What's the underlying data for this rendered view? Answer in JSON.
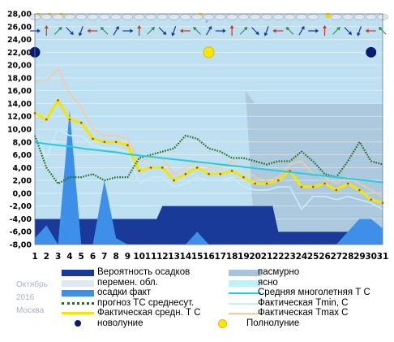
{
  "caption": {
    "month": "Октябрь",
    "year": "2016",
    "city": "Москва"
  },
  "legend": [
    {
      "key": "precip_prob",
      "label": "Вероятность осадков",
      "color": "#1a3a9a",
      "kind": "box"
    },
    {
      "key": "overcast",
      "label": "пасмурно",
      "color": "#a9c3d8",
      "kind": "box"
    },
    {
      "key": "variable",
      "label": "перемен. обл.",
      "color": "#dde8f3",
      "kind": "box"
    },
    {
      "key": "clear",
      "label": "ясно",
      "color": "#bff2f7",
      "kind": "box"
    },
    {
      "key": "precip_fact",
      "label": "осадки факт",
      "color": "#3d8fe8",
      "kind": "box"
    },
    {
      "key": "norm_t",
      "label": "Средняя многолетняя Т С",
      "color": "#1fcfe0",
      "kind": "line"
    },
    {
      "key": "forecast_t",
      "label": "прогноз ТС среднесут.",
      "color": "#1e6e1e",
      "kind": "dotted"
    },
    {
      "key": "fact_tmin",
      "label": "Фактическая Tmin, C",
      "color": "#c9ecf7",
      "kind": "line"
    },
    {
      "key": "fact_tavg",
      "label": "Фактическая средн. Т С",
      "color": "#f5e600",
      "kind": "thick"
    },
    {
      "key": "fact_tmax",
      "label": "Фактическая Tmax C",
      "color": "#f8c9a0",
      "kind": "line"
    },
    {
      "key": "new_moon",
      "label": "новолуние",
      "color": "#0a1a6e",
      "kind": "dot"
    },
    {
      "key": "full_moon",
      "label": "Полнолуние",
      "color": "#ffe800",
      "kind": "circle"
    }
  ],
  "chart_data": {
    "type": "line",
    "x": [
      1,
      2,
      3,
      4,
      5,
      6,
      7,
      8,
      9,
      10,
      11,
      12,
      13,
      14,
      15,
      16,
      17,
      18,
      19,
      20,
      21,
      22,
      23,
      24,
      25,
      26,
      27,
      28,
      29,
      30,
      31
    ],
    "xlabels": [
      "1",
      "2",
      "3",
      "4",
      "5",
      "6",
      "7",
      "8",
      "9",
      "10",
      "11",
      "12",
      "13",
      "14",
      "15",
      "16",
      "17",
      "18",
      "19",
      "20",
      "21",
      "22",
      "23",
      "24",
      "25",
      "26",
      "27",
      "28",
      "29",
      "30",
      "31"
    ],
    "ylim": [
      -8,
      28
    ],
    "yticks": [
      "-8,00",
      "-6,00",
      "-4,00",
      "-2,00",
      "0,00",
      "2,00",
      "4,00",
      "6,00",
      "8,00",
      "10,00",
      "12,00",
      "14,00",
      "16,00",
      "18,00",
      "20,00",
      "22,00",
      "24,00",
      "26,00",
      "28,00"
    ],
    "series": [
      {
        "name": "Фактическая Tmax C",
        "color": "#f8c9a0",
        "values": [
          17.5,
          17.5,
          19.5,
          15.5,
          13.5,
          10,
          9,
          9,
          8.5,
          5,
          5.5,
          5.5,
          3,
          4,
          5,
          4,
          4,
          5,
          4,
          2.5,
          2,
          2.5,
          4.5,
          5,
          3,
          2.5,
          1.5,
          2.5,
          1.5,
          0.5,
          -0.5
        ]
      },
      {
        "name": "Фактическая средн. Т С",
        "color": "#f5e600",
        "values": [
          12.5,
          11.5,
          14.5,
          11.5,
          11,
          8.5,
          8,
          8,
          7.5,
          3.5,
          4,
          4,
          2,
          3,
          4,
          3,
          3,
          3.5,
          2.5,
          1.5,
          1.5,
          2,
          3.5,
          1,
          1,
          1.5,
          0.5,
          1.5,
          0.5,
          -1,
          -1.5
        ]
      },
      {
        "name": "Фактическая Tmin, C",
        "color": "#c9ecf7",
        "values": [
          9.5,
          5.5,
          10,
          9,
          9,
          7.5,
          7,
          7,
          6.5,
          1.5,
          2.5,
          2.5,
          1,
          1.5,
          2.5,
          2,
          2,
          2.5,
          1,
          0.5,
          0.5,
          1,
          1,
          -2.5,
          -0.5,
          -0.5,
          -1,
          -0.5,
          -1,
          -1.5,
          -2.5
        ]
      },
      {
        "name": "прогноз ТС среднесут.",
        "color": "#1e6e1e",
        "values": [
          9,
          4,
          1.5,
          2.5,
          2.5,
          3,
          2,
          2.5,
          2.5,
          5.5,
          6,
          6.5,
          7,
          9,
          8.5,
          7,
          6.5,
          5.5,
          5.5,
          5,
          4.5,
          5,
          5,
          6.5,
          5,
          3,
          2.5,
          5,
          8,
          5,
          4.5
        ]
      },
      {
        "name": "Средняя многолетняя Т С",
        "color": "#1fcfe0",
        "values": [
          8,
          7.7,
          7.5,
          7.3,
          7,
          6.8,
          6.6,
          6.4,
          6.1,
          5.9,
          5.7,
          5.5,
          5.3,
          5.1,
          4.9,
          4.7,
          4.5,
          4.3,
          4.1,
          3.9,
          3.7,
          3.5,
          3.3,
          3.1,
          2.9,
          2.7,
          2.5,
          2.3,
          2.1,
          1.9,
          1.7
        ]
      }
    ],
    "precip_fact": [
      -7,
      -5,
      -8,
      13,
      -8,
      -8,
      2,
      -7,
      -8,
      -8,
      -8,
      -8,
      -8,
      -8,
      -6,
      -8,
      -8,
      -8,
      -8,
      -8,
      -8,
      -8,
      -8,
      -8,
      -8,
      -8,
      -8,
      -6,
      -4,
      -4,
      -5.5
    ],
    "precip_prob_level": [
      -4,
      -4,
      -4,
      -4,
      -4,
      -4,
      -4,
      -4,
      -4,
      -4,
      -4,
      -2,
      -2,
      -2,
      -2,
      -2,
      -2,
      -2,
      -2,
      -2,
      -2,
      -6,
      -6,
      -6,
      -6,
      -6,
      -6,
      -6,
      -6,
      -6,
      -6
    ],
    "cloud_band_upper": {
      "from_day": 20,
      "color": "#a9c3d8",
      "value": 14
    },
    "new_moon_days": [
      1,
      30
    ],
    "full_moon_days": [
      16
    ],
    "moon_level": 22,
    "weather_icons": [
      "cloud-sun",
      "cloud-sun",
      "cloud-sun",
      "cloud",
      "cloud",
      "cloud",
      "cloud",
      "cloud",
      "cloud",
      "cloud",
      "cloud",
      "cloud",
      "cloud",
      "cloud",
      "cloud-sun",
      "cloud-rain",
      "cloud",
      "cloud",
      "cloud",
      "cloud",
      "cloud",
      "cloud",
      "cloud",
      "cloud",
      "cloud",
      "sun",
      "cloud",
      "cloud",
      "cloud",
      "cloud",
      "cloud"
    ]
  }
}
